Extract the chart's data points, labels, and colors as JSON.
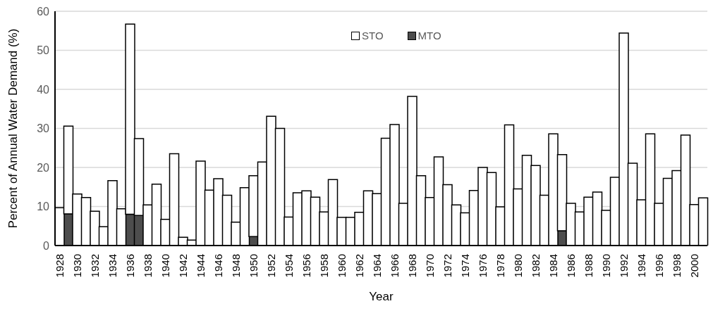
{
  "chart_data": {
    "type": "bar",
    "stacked": true,
    "xlabel": "Year",
    "ylabel": "Percent of Annual Water Demand (%)",
    "categories": [
      "1928",
      null,
      "1930",
      null,
      "1932",
      null,
      "1934",
      null,
      "1936",
      null,
      "1938",
      null,
      "1940",
      null,
      "1942",
      null,
      "1944",
      null,
      "1946",
      null,
      "1948",
      null,
      "1950",
      null,
      "1952",
      null,
      "1954",
      null,
      "1956",
      null,
      "1958",
      null,
      "1960",
      null,
      "1962",
      null,
      "1964",
      null,
      "1966",
      null,
      "1968",
      null,
      "1970",
      null,
      "1972",
      null,
      "1974",
      null,
      "1976",
      null,
      "1978",
      null,
      "1980",
      null,
      "1982",
      null,
      "1984",
      null,
      "1986",
      null,
      "1988",
      null,
      "1990",
      null,
      "1992",
      null,
      "1994",
      null,
      "1996",
      null,
      "1998",
      null,
      "2000",
      null
    ],
    "series": [
      {
        "name": "MTO",
        "color": "#4d4d4d",
        "values": [
          null,
          8.1,
          null,
          null,
          null,
          null,
          null,
          null,
          8.0,
          7.7,
          null,
          null,
          null,
          null,
          null,
          null,
          null,
          null,
          null,
          null,
          null,
          null,
          2.3,
          null,
          null,
          null,
          null,
          null,
          null,
          null,
          null,
          null,
          null,
          null,
          null,
          null,
          null,
          null,
          null,
          null,
          null,
          null,
          null,
          null,
          null,
          null,
          null,
          null,
          null,
          null,
          null,
          null,
          null,
          null,
          null,
          null,
          null,
          3.8,
          null,
          null,
          null,
          null,
          null,
          null,
          null,
          null,
          null,
          null,
          null,
          null,
          null,
          null,
          null,
          null
        ]
      },
      {
        "name": "STO",
        "color": "#ffffff",
        "values": [
          9.7,
          22.5,
          13.2,
          12.3,
          8.8,
          4.8,
          16.6,
          9.4,
          48.7,
          19.7,
          10.4,
          15.7,
          6.7,
          23.5,
          2.1,
          1.4,
          21.6,
          14.2,
          17.1,
          12.9,
          6.0,
          14.8,
          15.6,
          21.4,
          33.1,
          30.0,
          7.3,
          13.5,
          14.0,
          12.4,
          8.6,
          16.9,
          7.2,
          7.2,
          8.5,
          14.0,
          13.3,
          27.5,
          31.0,
          10.8,
          38.2,
          17.9,
          12.3,
          22.7,
          15.6,
          10.4,
          8.4,
          14.1,
          20.0,
          18.7,
          9.9,
          30.9,
          14.5,
          23.1,
          20.5,
          12.9,
          28.6,
          19.5,
          10.8,
          8.6,
          12.4,
          13.7,
          9.0,
          17.5,
          54.4,
          21.1,
          11.7,
          28.6,
          10.8,
          17.2,
          19.2,
          28.3,
          10.5,
          12.2
        ]
      }
    ],
    "legend": "top",
    "ylim": [
      0,
      60
    ],
    "yticks": [
      0,
      10,
      20,
      30,
      40,
      50,
      60
    ],
    "grid": "y"
  }
}
